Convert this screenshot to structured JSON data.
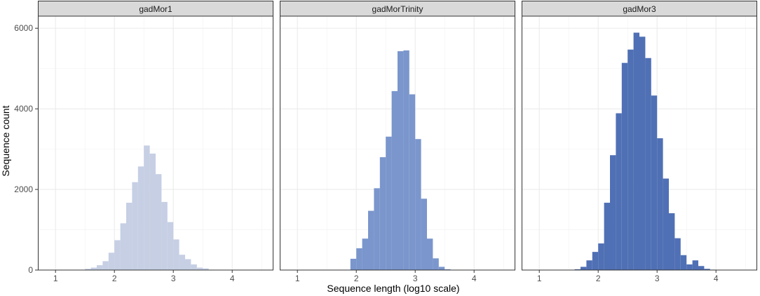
{
  "chart_data": {
    "type": "histogram",
    "xlabel": "Sequence length (log10 scale)",
    "ylabel": "Sequence count",
    "xlim": [
      0.7,
      4.7
    ],
    "ylim": [
      0,
      6300
    ],
    "xticks": [
      "1",
      "2",
      "3",
      "4"
    ],
    "yticks": [
      "0",
      "2000",
      "4000",
      "6000"
    ],
    "bin_width": 0.1,
    "grid": true,
    "panels": [
      {
        "name": "gadMor1",
        "color": "#c6cfe4",
        "bins": [
          {
            "x0": 1.5,
            "count": 30
          },
          {
            "x0": 1.6,
            "count": 60
          },
          {
            "x0": 1.7,
            "count": 120
          },
          {
            "x0": 1.8,
            "count": 220
          },
          {
            "x0": 1.9,
            "count": 430
          },
          {
            "x0": 2.0,
            "count": 740
          },
          {
            "x0": 2.1,
            "count": 1160
          },
          {
            "x0": 2.2,
            "count": 1670
          },
          {
            "x0": 2.3,
            "count": 2180
          },
          {
            "x0": 2.4,
            "count": 2570
          },
          {
            "x0": 2.5,
            "count": 3090
          },
          {
            "x0": 2.6,
            "count": 2890
          },
          {
            "x0": 2.7,
            "count": 2380
          },
          {
            "x0": 2.8,
            "count": 1690
          },
          {
            "x0": 2.9,
            "count": 1190
          },
          {
            "x0": 3.0,
            "count": 760
          },
          {
            "x0": 3.1,
            "count": 380
          },
          {
            "x0": 3.2,
            "count": 270
          },
          {
            "x0": 3.3,
            "count": 140
          },
          {
            "x0": 3.4,
            "count": 60
          },
          {
            "x0": 3.5,
            "count": 40
          },
          {
            "x0": 3.6,
            "count": 10
          },
          {
            "x0": 3.7,
            "count": 5
          }
        ]
      },
      {
        "name": "gadMorTrinity",
        "color": "#7a96cc",
        "bins": [
          {
            "x0": 1.9,
            "count": 280
          },
          {
            "x0": 2.0,
            "count": 540
          },
          {
            "x0": 2.1,
            "count": 780
          },
          {
            "x0": 2.2,
            "count": 1470
          },
          {
            "x0": 2.3,
            "count": 2030
          },
          {
            "x0": 2.4,
            "count": 2800
          },
          {
            "x0": 2.5,
            "count": 3310
          },
          {
            "x0": 2.6,
            "count": 4440
          },
          {
            "x0": 2.7,
            "count": 5430
          },
          {
            "x0": 2.8,
            "count": 5450
          },
          {
            "x0": 2.9,
            "count": 4360
          },
          {
            "x0": 3.0,
            "count": 3250
          },
          {
            "x0": 3.1,
            "count": 1770
          },
          {
            "x0": 3.2,
            "count": 780
          },
          {
            "x0": 3.3,
            "count": 290
          },
          {
            "x0": 3.4,
            "count": 80
          },
          {
            "x0": 3.5,
            "count": 20
          },
          {
            "x0": 3.6,
            "count": 5
          }
        ]
      },
      {
        "name": "gadMor3",
        "color": "#5070b5",
        "bins": [
          {
            "x0": 1.6,
            "count": 20
          },
          {
            "x0": 1.7,
            "count": 80
          },
          {
            "x0": 1.8,
            "count": 240
          },
          {
            "x0": 1.9,
            "count": 450
          },
          {
            "x0": 2.0,
            "count": 660
          },
          {
            "x0": 2.1,
            "count": 1670
          },
          {
            "x0": 2.2,
            "count": 2850
          },
          {
            "x0": 2.3,
            "count": 3890
          },
          {
            "x0": 2.4,
            "count": 5140
          },
          {
            "x0": 2.5,
            "count": 5470
          },
          {
            "x0": 2.6,
            "count": 5890
          },
          {
            "x0": 2.7,
            "count": 5790
          },
          {
            "x0": 2.8,
            "count": 5260
          },
          {
            "x0": 2.9,
            "count": 4330
          },
          {
            "x0": 3.0,
            "count": 3270
          },
          {
            "x0": 3.1,
            "count": 2270
          },
          {
            "x0": 3.2,
            "count": 1410
          },
          {
            "x0": 3.3,
            "count": 790
          },
          {
            "x0": 3.4,
            "count": 370
          },
          {
            "x0": 3.5,
            "count": 140
          },
          {
            "x0": 3.6,
            "count": 240
          },
          {
            "x0": 3.7,
            "count": 100
          },
          {
            "x0": 3.8,
            "count": 30
          },
          {
            "x0": 3.9,
            "count": 10
          }
        ]
      }
    ]
  }
}
